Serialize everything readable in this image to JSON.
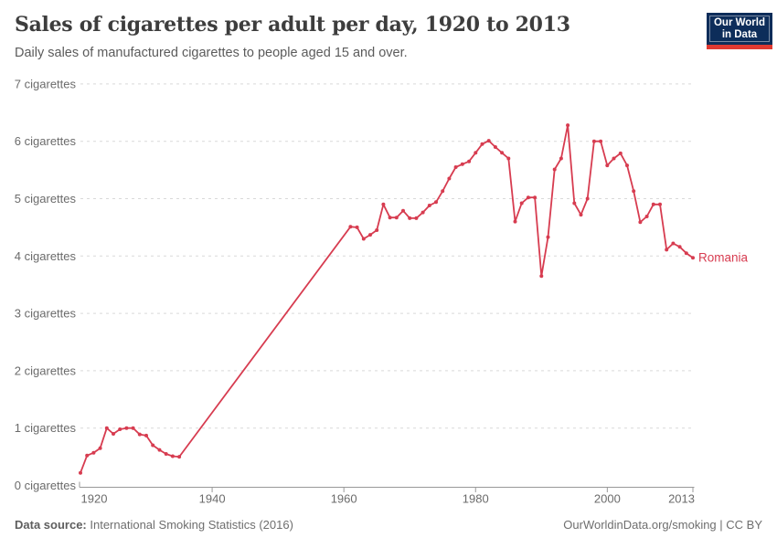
{
  "header": {
    "title": "Sales of cigarettes per adult per day, 1920 to 2013",
    "subtitle": "Daily sales of manufactured cigarettes to people aged 15 and over.",
    "logo": {
      "line1": "Our World",
      "line2": "in Data",
      "bg_color": "#0d2d5a",
      "bar_color": "#e03931"
    }
  },
  "footer": {
    "datasource_label": "Data source:",
    "datasource_value": " International Smoking Statistics (2016)",
    "credit": "OurWorldinData.org/smoking | CC BY"
  },
  "chart_data": {
    "type": "line",
    "title": "Sales of cigarettes per adult per day, 1920 to 2013",
    "subtitle": "Daily sales of manufactured cigarettes to people aged 15 and over.",
    "entity_label": "Romania",
    "line_color": "#d73c50",
    "grid": "horizontal-dashed",
    "legend_position": "end-of-line",
    "xlim": [
      1920,
      2013
    ],
    "ylim": [
      0,
      7
    ],
    "x_ticks": [
      1920,
      1940,
      1960,
      1980,
      2000,
      2013
    ],
    "y_ticks": [
      0,
      1,
      2,
      3,
      4,
      5,
      6,
      7
    ],
    "y_tick_suffix": " cigarettes",
    "series": [
      {
        "name": "Romania",
        "points": [
          [
            1920,
            0.22
          ],
          [
            1921,
            0.52
          ],
          [
            1922,
            0.57
          ],
          [
            1923,
            0.65
          ],
          [
            1924,
            1.0
          ],
          [
            1925,
            0.9
          ],
          [
            1926,
            0.98
          ],
          [
            1927,
            1.0
          ],
          [
            1928,
            1.0
          ],
          [
            1929,
            0.89
          ],
          [
            1930,
            0.87
          ],
          [
            1931,
            0.7
          ],
          [
            1932,
            0.62
          ],
          [
            1933,
            0.55
          ],
          [
            1934,
            0.51
          ],
          [
            1935,
            0.5
          ],
          [
            1961,
            4.51
          ],
          [
            1962,
            4.5
          ],
          [
            1963,
            4.3
          ],
          [
            1964,
            4.37
          ],
          [
            1965,
            4.45
          ],
          [
            1966,
            4.9
          ],
          [
            1967,
            4.67
          ],
          [
            1968,
            4.67
          ],
          [
            1969,
            4.79
          ],
          [
            1970,
            4.66
          ],
          [
            1971,
            4.66
          ],
          [
            1972,
            4.76
          ],
          [
            1973,
            4.88
          ],
          [
            1974,
            4.94
          ],
          [
            1975,
            5.13
          ],
          [
            1976,
            5.35
          ],
          [
            1977,
            5.55
          ],
          [
            1978,
            5.6
          ],
          [
            1979,
            5.65
          ],
          [
            1980,
            5.8
          ],
          [
            1981,
            5.95
          ],
          [
            1982,
            6.01
          ],
          [
            1983,
            5.9
          ],
          [
            1984,
            5.8
          ],
          [
            1985,
            5.7
          ],
          [
            1986,
            4.6
          ],
          [
            1987,
            4.92
          ],
          [
            1988,
            5.02
          ],
          [
            1989,
            5.02
          ],
          [
            1990,
            3.65
          ],
          [
            1991,
            4.33
          ],
          [
            1992,
            5.51
          ],
          [
            1993,
            5.7
          ],
          [
            1994,
            6.28
          ],
          [
            1995,
            4.92
          ],
          [
            1996,
            4.72
          ],
          [
            1997,
            5.0
          ],
          [
            1998,
            6.0
          ],
          [
            1999,
            6.0
          ],
          [
            2000,
            5.58
          ],
          [
            2001,
            5.7
          ],
          [
            2002,
            5.79
          ],
          [
            2003,
            5.58
          ],
          [
            2004,
            5.13
          ],
          [
            2005,
            4.59
          ],
          [
            2006,
            4.69
          ],
          [
            2007,
            4.9
          ],
          [
            2008,
            4.9
          ],
          [
            2009,
            4.11
          ],
          [
            2010,
            4.22
          ],
          [
            2011,
            4.16
          ],
          [
            2012,
            4.05
          ],
          [
            2013,
            3.97
          ]
        ]
      }
    ],
    "note": "Line connects 1935 and 1961 directly; no data points shown between those years."
  }
}
